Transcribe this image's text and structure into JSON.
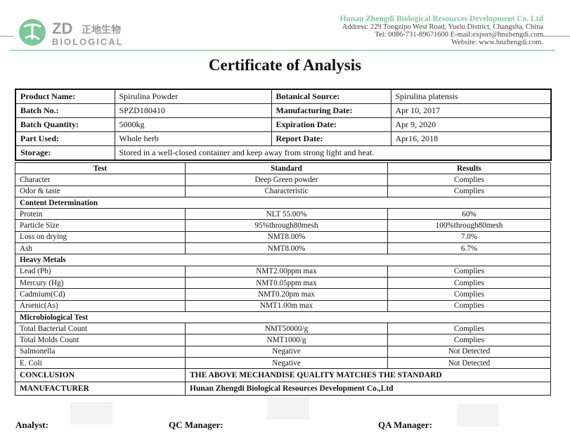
{
  "header": {
    "logo_text": "ZD 正地生物 BIOLOGICAL",
    "company_name": "Hunan Zhengdi Biological Resources Development Co. Ltd",
    "address": "Address: 229 Tongzipo West Road, Yuelu District, Changsha, China",
    "tel": "Tel: 0086-731-89671600   E-mail:export@hnzhengdi.com",
    "website": "Website: www.hnzhengdi.com.",
    "brand_color": "#6cbf86"
  },
  "title": "Certificate of Analysis",
  "info": [
    [
      "Product Name:",
      "Spirulina Powder",
      "Botanical Source:",
      "Spirulina platensis"
    ],
    [
      "Batch No.:",
      "SPZD180410",
      "Manufacturing Date:",
      "Apr 10, 2017"
    ],
    [
      "Batch Quantity:",
      "5000kg",
      "Expiration Date:",
      "Apr 9, 2020"
    ],
    [
      "Part Used:",
      "Whole herb",
      "Report Date:",
      "Apr16, 2018"
    ]
  ],
  "storage": {
    "label": "Storage:",
    "value": "Stored in a well-closed container and keep away from strong light and heat."
  },
  "tests": {
    "headers": [
      "Test",
      "Standard",
      "Results"
    ],
    "rows": [
      [
        "Character",
        "Deep  Green  powder",
        "Complies"
      ],
      [
        "Odor  &  taste",
        "Characteristic",
        "Complies"
      ],
      [
        "Content  Determination"
      ],
      [
        "Protein",
        "NLT 55.00%",
        "60%"
      ],
      [
        "Particle  Size",
        "95%through80mesh",
        "100%through80mesh"
      ],
      [
        "Loss on drying",
        "NMT8.00%",
        "7.0%"
      ],
      [
        "Ash",
        "NMT8.00%",
        "6.7%"
      ],
      [
        "Heavy  Metals"
      ],
      [
        "Lead (Pb)",
        "NMT2.00ppm max",
        "Complies"
      ],
      [
        "Mercury (Hg)",
        "NMT0.05ppm max",
        "Complies"
      ],
      [
        "Cadmium(Cd)",
        "NMT0.20pm max",
        "Complies"
      ],
      [
        "Arsenic(As)",
        "NMT1.00m max",
        "Complies"
      ],
      [
        "Microbiological  Test"
      ],
      [
        "Total Bacterial Count",
        "NMT50000/g",
        "Complies"
      ],
      [
        "Total  Molds  Count",
        "NMT1000/g",
        "Complies"
      ],
      [
        "Salmonella",
        "Negative",
        "Not  Detected"
      ],
      [
        "E.  Coli",
        "Negative",
        "Not  Detected"
      ]
    ],
    "conclusion": {
      "label": "CONCLUSION",
      "value": "THE ABOVE MECHANDISE QUALITY MATCHES THE STANDARD"
    },
    "manufacturer": {
      "label": "MANUFACTURER",
      "value": "Hunan Zhengdi Biological Resources Development Co.,Ltd"
    }
  },
  "signatures": {
    "analyst": "Analyst:",
    "qc": "QC Manager:",
    "qa": "QA Manager:"
  }
}
